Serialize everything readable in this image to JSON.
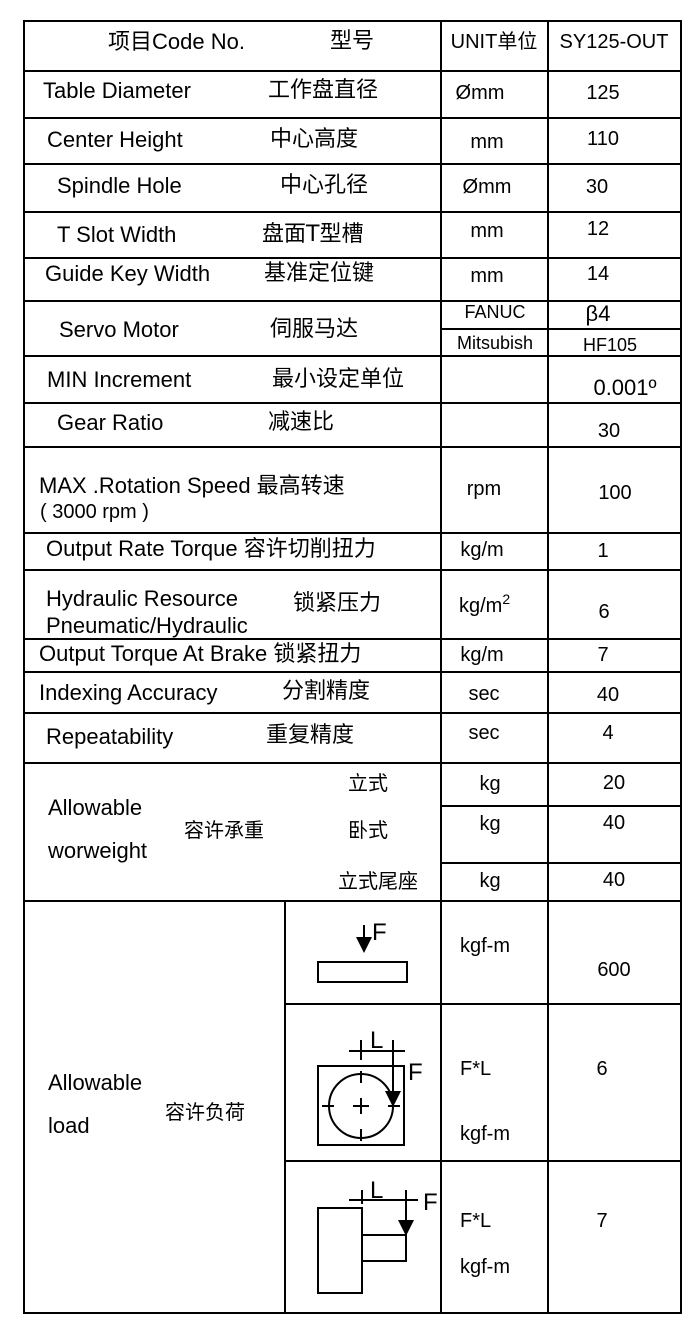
{
  "header": {
    "item": "项目Code No.",
    "model": "型号",
    "unit": "UNIT单位",
    "code": "SY125-OUT"
  },
  "rows": [
    {
      "en": "Table Diameter",
      "cn": "工作盘直径",
      "unit": "Ømm",
      "value": "125"
    },
    {
      "en": "Center Height",
      "cn": "中心高度",
      "unit": "mm",
      "value": "110"
    },
    {
      "en": "Spindle Hole",
      "cn": "中心孔径",
      "unit": "Ømm",
      "value": "30"
    },
    {
      "en": "T Slot Width",
      "cn": "盘面T型槽",
      "unit": "mm",
      "value": "12"
    },
    {
      "en": "Guide Key Width",
      "cn": "基准定位键",
      "unit": "mm",
      "value": "14"
    },
    {
      "en": "Servo Motor",
      "cn": "伺服马达",
      "unit_a": "FANUC",
      "value_a": "β4",
      "unit_b": "Mitsubish",
      "value_b": "HF105"
    },
    {
      "en": "MIN Increment",
      "cn": "最小设定单位",
      "unit": "",
      "value": "0.001º"
    },
    {
      "en": "Gear Ratio",
      "cn": "减速比",
      "unit": "",
      "value": "30"
    },
    {
      "en": "MAX .Rotation Speed 最高转速",
      "en2": "( 3000 rpm )",
      "unit": "rpm",
      "value": "100"
    },
    {
      "en": "Output Rate Torque 容许切削扭力",
      "unit": "kg/m",
      "value": "1"
    },
    {
      "en": "Hydraulic Resource",
      "en2": "Pneumatic/Hydraulic",
      "cn": "锁紧压力",
      "unit": "kg/m",
      "unit_sup": "2",
      "value": "6"
    },
    {
      "en": "Output Torque At Brake 锁紧扭力",
      "unit": "kg/m",
      "value": "7"
    },
    {
      "en": "Indexing Accuracy",
      "cn": "分割精度",
      "unit": "sec",
      "value": "40"
    },
    {
      "en": "Repeatability",
      "cn": "重复精度",
      "unit": "sec",
      "value": "4"
    }
  ],
  "weight": {
    "en1": "Allowable",
    "en2": "worweight",
    "cn": "容许承重",
    "sub": [
      {
        "label": "立式",
        "unit": "kg",
        "value": "20"
      },
      {
        "label": "卧式",
        "unit": "kg",
        "value": "40"
      },
      {
        "label": "立式尾座",
        "unit": "kg",
        "value": "40"
      }
    ]
  },
  "load": {
    "en1": "Allowable",
    "en2": "load",
    "cn": "容许负荷",
    "sub": [
      {
        "unit1": "kgf-m",
        "value": "600",
        "f": "F"
      },
      {
        "unit1": "F*L",
        "unit2": "kgf-m",
        "value": "6",
        "f": "F",
        "l": "L"
      },
      {
        "unit1": "F*L",
        "unit2": "kgf-m",
        "value": "7",
        "f": "F",
        "l": "L"
      }
    ]
  }
}
